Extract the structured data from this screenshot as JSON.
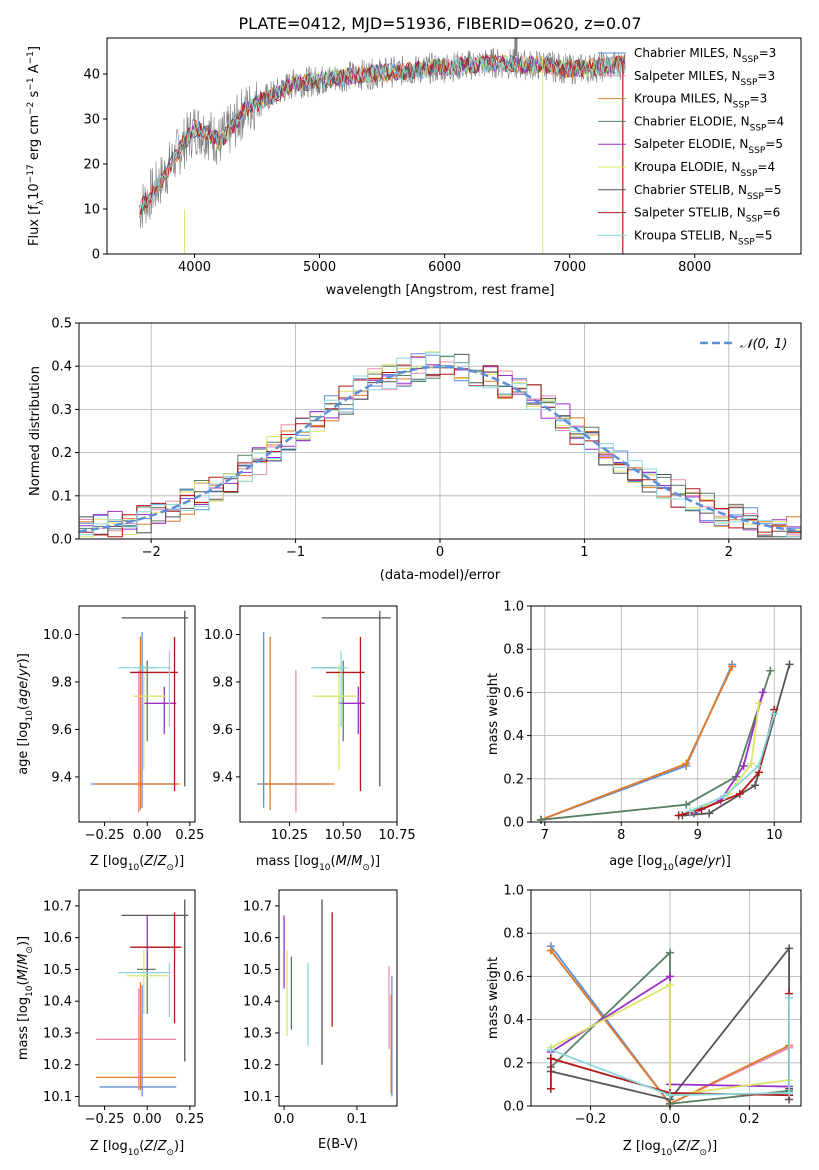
{
  "figure": {
    "title": "PLATE=0412, MJD=51936, FIBERID=0620, z=0.07"
  },
  "colors": {
    "Chabrier MILES": "#5b8fd9",
    "Salpeter MILES": "#ea8fb2",
    "Kroupa MILES": "#e07b28",
    "Chabrier ELODIE": "#5a7f63",
    "Salpeter ELODIE": "#9b30c8",
    "Kroupa ELODIE": "#dde46a",
    "Chabrier STELIB": "#555555",
    "Salpeter STELIB": "#b01818",
    "Kroupa STELIB": "#8ad8dc",
    "data": "#808080",
    "gaussian": "#5b8fd9",
    "grid": "#b0b0b0"
  },
  "chart_data": [
    {
      "panel": "spectrum",
      "type": "line",
      "xlabel": "wavelength [Angstrom, rest frame]",
      "ylabel": "Flux [f",
      "xlim": [
        3300,
        8850
      ],
      "ylim": [
        0,
        48
      ],
      "xticks": [
        4000,
        5000,
        6000,
        7000,
        8000
      ],
      "yticks": [
        0,
        10,
        20,
        30,
        40
      ],
      "grid": false,
      "legend_position": "right",
      "series": [
        {
          "name": "Chabrier MILES, N",
          "sub": "SSP",
          "n": "=3"
        },
        {
          "name": "Salpeter MILES, N",
          "sub": "SSP",
          "n": "=3"
        },
        {
          "name": "Kroupa MILES, N",
          "sub": "SSP",
          "n": "=3"
        },
        {
          "name": "Chabrier ELODIE, N",
          "sub": "SSP",
          "n": "=4"
        },
        {
          "name": "Salpeter ELODIE, N",
          "sub": "SSP",
          "n": "=5"
        },
        {
          "name": "Kroupa ELODIE, N",
          "sub": "SSP",
          "n": "=4"
        },
        {
          "name": "Chabrier STELIB, N",
          "sub": "SSP",
          "n": "=5"
        },
        {
          "name": "Salpeter STELIB, N",
          "sub": "SSP",
          "n": "=6"
        },
        {
          "name": "Kroupa STELIB, N",
          "sub": "SSP",
          "n": "=5"
        }
      ],
      "continuum_x": [
        3560,
        3700,
        3900,
        4000,
        4100,
        4200,
        4300,
        4400,
        4600,
        4800,
        5000,
        5200,
        5400,
        5600,
        5800,
        6000,
        6200,
        6400,
        6600,
        6800,
        7000,
        7200,
        7400,
        7450
      ],
      "continuum_y": [
        10,
        15,
        24,
        28,
        27,
        25,
        28,
        32,
        35,
        38,
        38.5,
        39.5,
        40,
        40.5,
        41,
        41.5,
        42,
        42.5,
        42,
        42,
        41,
        41.5,
        42,
        42.5
      ]
    },
    {
      "panel": "residuals",
      "type": "histogram",
      "xlabel": "(data-model)/error",
      "ylabel": "Normed distribution",
      "xlim": [
        -2.5,
        2.5
      ],
      "ylim": [
        0,
        0.5
      ],
      "xticks": [
        -2,
        -1,
        0,
        1,
        2
      ],
      "yticks": [
        0.0,
        0.1,
        0.2,
        0.3,
        0.4,
        0.5
      ],
      "grid": true,
      "legend_position": "top-right",
      "legend_label": "𝒩(0, 1)",
      "bin_width": 0.1
    },
    {
      "panel": "age-vs-Z",
      "type": "scatter",
      "xlabel": "Z [log",
      "ylabel": "age  [log",
      "xlim": [
        -0.4,
        0.28
      ],
      "ylim": [
        9.21,
        10.12
      ],
      "xticks": [
        -0.25,
        0.0,
        0.25
      ],
      "yticks": [
        9.4,
        9.6,
        9.8,
        10.0
      ],
      "grid": false,
      "points": [
        {
          "label": "Chabrier MILES",
          "x": -0.03,
          "xlo": -0.33,
          "xhi": 0.18,
          "y": 9.37,
          "ylo": 9.27,
          "yhi": 10.01
        },
        {
          "label": "Salpeter MILES",
          "x": -0.05,
          "xlo": -0.3,
          "xhi": 0.17,
          "y": 9.37,
          "ylo": 9.25,
          "yhi": 9.85
        },
        {
          "label": "Kroupa MILES",
          "x": -0.04,
          "xlo": -0.3,
          "xhi": 0.19,
          "y": 9.37,
          "ylo": 9.26,
          "yhi": 9.99
        },
        {
          "label": "Chabrier ELODIE",
          "x": 0.0,
          "xlo": -0.06,
          "xhi": 0.05,
          "y": 9.86,
          "ylo": 9.55,
          "yhi": 9.89
        },
        {
          "label": "Salpeter ELODIE",
          "x": 0.1,
          "xlo": -0.02,
          "xhi": 0.17,
          "y": 9.71,
          "ylo": 9.58,
          "yhi": 9.78
        },
        {
          "label": "Kroupa ELODIE",
          "x": -0.02,
          "xlo": -0.08,
          "xhi": 0.11,
          "y": 9.74,
          "ylo": 9.43,
          "yhi": 9.87
        },
        {
          "label": "Chabrier STELIB",
          "x": 0.22,
          "xlo": -0.15,
          "xhi": 0.24,
          "y": 10.07,
          "ylo": 9.36,
          "yhi": 10.1
        },
        {
          "label": "Salpeter STELIB",
          "x": 0.16,
          "xlo": -0.1,
          "xhi": 0.18,
          "y": 9.84,
          "ylo": 9.34,
          "yhi": 9.99
        },
        {
          "label": "Kroupa STELIB",
          "x": 0.13,
          "xlo": -0.17,
          "xhi": 0.14,
          "y": 9.86,
          "ylo": 9.61,
          "yhi": 9.93
        }
      ]
    },
    {
      "panel": "age-vs-mass",
      "type": "scatter",
      "xlabel": "mass [log",
      "ylabel": "",
      "xlim": [
        10.02,
        10.75
      ],
      "ylim": [
        9.21,
        10.12
      ],
      "xticks": [
        10.25,
        10.5,
        10.75
      ],
      "yticks": [
        9.4,
        9.6,
        9.8,
        10.0
      ],
      "grid": false,
      "points": [
        {
          "label": "Chabrier MILES",
          "x": 10.13,
          "xlo": 10.1,
          "xhi": 10.42,
          "y": 9.37,
          "ylo": 9.27,
          "yhi": 10.01
        },
        {
          "label": "Salpeter MILES",
          "x": 10.28,
          "xlo": 10.12,
          "xhi": 10.44,
          "y": 9.37,
          "ylo": 9.25,
          "yhi": 9.85
        },
        {
          "label": "Kroupa MILES",
          "x": 10.16,
          "xlo": 10.12,
          "xhi": 10.46,
          "y": 9.37,
          "ylo": 9.26,
          "yhi": 9.99
        },
        {
          "label": "Chabrier ELODIE",
          "x": 10.5,
          "xlo": 10.36,
          "xhi": 10.5,
          "y": 9.86,
          "ylo": 9.55,
          "yhi": 9.89
        },
        {
          "label": "Salpeter ELODIE",
          "x": 10.57,
          "xlo": 10.48,
          "xhi": 10.6,
          "y": 9.71,
          "ylo": 9.58,
          "yhi": 9.78
        },
        {
          "label": "Kroupa ELODIE",
          "x": 10.48,
          "xlo": 10.36,
          "xhi": 10.56,
          "y": 9.74,
          "ylo": 9.43,
          "yhi": 9.87
        },
        {
          "label": "Chabrier STELIB",
          "x": 10.67,
          "xlo": 10.4,
          "xhi": 10.72,
          "y": 10.07,
          "ylo": 9.36,
          "yhi": 10.1
        },
        {
          "label": "Salpeter STELIB",
          "x": 10.58,
          "xlo": 10.42,
          "xhi": 10.6,
          "y": 9.84,
          "ylo": 9.34,
          "yhi": 9.99
        },
        {
          "label": "Kroupa STELIB",
          "x": 10.49,
          "xlo": 10.35,
          "xhi": 10.52,
          "y": 9.86,
          "ylo": 9.61,
          "yhi": 9.93
        }
      ]
    },
    {
      "panel": "massweight-vs-age",
      "type": "line",
      "xlabel": "age  [log",
      "ylabel": "mass weight",
      "xlim": [
        6.82,
        10.35
      ],
      "ylim": [
        0,
        1.0
      ],
      "xticks": [
        7,
        8,
        9,
        10
      ],
      "yticks": [
        0.0,
        0.2,
        0.4,
        0.6,
        0.8,
        1.0
      ],
      "grid": true,
      "series": [
        {
          "name": "Chabrier MILES",
          "x": [
            6.95,
            8.85,
            9.45
          ],
          "y": [
            0.01,
            0.26,
            0.73
          ]
        },
        {
          "name": "Salpeter MILES",
          "x": [
            6.95,
            8.85,
            9.45
          ],
          "y": [
            0.01,
            0.27,
            0.72
          ]
        },
        {
          "name": "Kroupa MILES",
          "x": [
            6.95,
            8.85,
            9.45
          ],
          "y": [
            0.01,
            0.27,
            0.72
          ]
        },
        {
          "name": "Chabrier ELODIE",
          "x": [
            6.95,
            8.85,
            9.5,
            9.95
          ],
          "y": [
            0.01,
            0.08,
            0.21,
            0.7
          ]
        },
        {
          "name": "Salpeter ELODIE",
          "x": [
            8.95,
            9.3,
            9.6,
            9.85
          ],
          "y": [
            0.04,
            0.1,
            0.26,
            0.6
          ]
        },
        {
          "name": "Kroupa ELODIE",
          "x": [
            8.95,
            9.4,
            9.7,
            9.8
          ],
          "y": [
            0.05,
            0.13,
            0.27,
            0.55
          ]
        },
        {
          "name": "Chabrier STELIB",
          "x": [
            8.8,
            9.15,
            9.75,
            10.2
          ],
          "y": [
            0.03,
            0.04,
            0.17,
            0.73
          ]
        },
        {
          "name": "Salpeter STELIB",
          "x": [
            8.75,
            9.05,
            9.55,
            9.8,
            10.0
          ],
          "y": [
            0.03,
            0.06,
            0.13,
            0.23,
            0.52
          ]
        },
        {
          "name": "Kroupa STELIB",
          "x": [
            8.9,
            9.35,
            9.8,
            10.0
          ],
          "y": [
            0.05,
            0.12,
            0.26,
            0.5
          ]
        }
      ]
    },
    {
      "panel": "mass-vs-Z",
      "type": "scatter",
      "xlabel": "Z [log",
      "ylabel": "mass [log",
      "xlim": [
        -0.4,
        0.28
      ],
      "ylim": [
        10.07,
        10.75
      ],
      "xticks": [
        -0.25,
        0.0,
        0.25
      ],
      "yticks": [
        10.1,
        10.2,
        10.3,
        10.4,
        10.5,
        10.6,
        10.7
      ],
      "grid": false,
      "points": [
        {
          "label": "Chabrier MILES",
          "x": -0.03,
          "xlo": -0.28,
          "xhi": 0.17,
          "y": 10.13,
          "ylo": 10.1,
          "yhi": 10.45
        },
        {
          "label": "Salpeter MILES",
          "x": -0.05,
          "xlo": -0.3,
          "xhi": 0.17,
          "y": 10.28,
          "ylo": 10.12,
          "yhi": 10.44
        },
        {
          "label": "Kroupa MILES",
          "x": -0.04,
          "xlo": -0.3,
          "xhi": 0.17,
          "y": 10.16,
          "ylo": 10.12,
          "yhi": 10.46
        },
        {
          "label": "Chabrier ELODIE",
          "x": 0.0,
          "xlo": -0.06,
          "xhi": 0.05,
          "y": 10.5,
          "ylo": 10.36,
          "yhi": 10.55
        },
        {
          "label": "Salpeter ELODIE",
          "x": 0.0,
          "xlo": -0.02,
          "xhi": 0.18,
          "y": 10.57,
          "ylo": 10.49,
          "yhi": 10.67
        },
        {
          "label": "Kroupa ELODIE",
          "x": -0.02,
          "xlo": -0.12,
          "xhi": 0.12,
          "y": 10.48,
          "ylo": 10.36,
          "yhi": 10.56
        },
        {
          "label": "Chabrier STELIB",
          "x": 0.22,
          "xlo": -0.15,
          "xhi": 0.24,
          "y": 10.67,
          "ylo": 10.21,
          "yhi": 10.72
        },
        {
          "label": "Salpeter STELIB",
          "x": 0.16,
          "xlo": -0.1,
          "xhi": 0.2,
          "y": 10.57,
          "ylo": 10.33,
          "yhi": 10.68
        },
        {
          "label": "Kroupa STELIB",
          "x": 0.13,
          "xlo": -0.17,
          "xhi": 0.14,
          "y": 10.49,
          "ylo": 10.35,
          "yhi": 10.52
        }
      ]
    },
    {
      "panel": "mass-vs-EBV",
      "type": "scatter",
      "xlabel": "E(B-V)",
      "ylabel": "",
      "xlim": [
        -0.007,
        0.155
      ],
      "ylim": [
        10.07,
        10.75
      ],
      "xticks": [
        0.0,
        0.1
      ],
      "yticks": [
        10.1,
        10.2,
        10.3,
        10.4,
        10.5,
        10.6,
        10.7
      ],
      "grid": false,
      "points": [
        {
          "label": "Chabrier MILES",
          "x": 0.148,
          "ylo": 10.1,
          "yhi": 10.48
        },
        {
          "label": "Salpeter MILES",
          "x": 0.144,
          "ylo": 10.25,
          "yhi": 10.51
        },
        {
          "label": "Kroupa MILES",
          "x": 0.147,
          "ylo": 10.11,
          "yhi": 10.42
        },
        {
          "label": "Chabrier ELODIE",
          "x": 0.01,
          "ylo": 10.31,
          "yhi": 10.54
        },
        {
          "label": "Salpeter ELODIE",
          "x": 0.0,
          "ylo": 10.44,
          "yhi": 10.67
        },
        {
          "label": "Kroupa ELODIE",
          "x": 0.004,
          "ylo": 10.29,
          "yhi": 10.56
        },
        {
          "label": "Chabrier STELIB",
          "x": 0.052,
          "ylo": 10.2,
          "yhi": 10.72
        },
        {
          "label": "Salpeter STELIB",
          "x": 0.066,
          "ylo": 10.32,
          "yhi": 10.68
        },
        {
          "label": "Kroupa STELIB",
          "x": 0.033,
          "ylo": 10.26,
          "yhi": 10.52
        }
      ]
    },
    {
      "panel": "massweight-vs-Z",
      "type": "line",
      "xlabel": "Z [log",
      "ylabel": "mass weight",
      "xlim": [
        -0.35,
        0.33
      ],
      "ylim": [
        0,
        1.0
      ],
      "xticks": [
        -0.2,
        0.0,
        0.2
      ],
      "yticks": [
        0.0,
        0.2,
        0.4,
        0.6,
        0.8,
        1.0
      ],
      "grid": true,
      "series": [
        {
          "name": "Chabrier MILES",
          "x": [
            -0.3,
            0.0,
            0.3
          ],
          "y": [
            0.74,
            0.01,
            0.27
          ]
        },
        {
          "name": "Salpeter MILES",
          "x": [
            -0.3,
            0.0,
            0.3
          ],
          "y": [
            0.72,
            0.01,
            0.27
          ]
        },
        {
          "name": "Kroupa MILES",
          "x": [
            -0.3,
            0.0,
            0.3
          ],
          "y": [
            0.72,
            0.01,
            0.28
          ]
        },
        {
          "name": "Chabrier ELODIE",
          "x": [
            -0.3,
            0.0,
            0.0,
            0.3
          ],
          "y": [
            0.18,
            0.71,
            0.01,
            0.07
          ]
        },
        {
          "name": "Salpeter ELODIE",
          "x": [
            -0.3,
            0.0,
            0.0,
            0.3
          ],
          "y": [
            0.25,
            0.6,
            0.1,
            0.09
          ]
        },
        {
          "name": "Kroupa ELODIE",
          "x": [
            -0.3,
            0.0,
            0.0,
            0.3
          ],
          "y": [
            0.27,
            0.56,
            0.05,
            0.12
          ]
        },
        {
          "name": "Chabrier STELIB",
          "x": [
            -0.3,
            0.0,
            0.3,
            0.3,
            0.3
          ],
          "y": [
            0.16,
            0.03,
            0.73,
            0.03,
            0.08
          ]
        },
        {
          "name": "Salpeter STELIB",
          "x": [
            -0.3,
            -0.3,
            0.0,
            0.3,
            0.3
          ],
          "y": [
            0.08,
            0.22,
            0.06,
            0.05,
            0.52
          ]
        },
        {
          "name": "Kroupa STELIB",
          "x": [
            -0.3,
            0.0,
            0.3,
            0.3
          ],
          "y": [
            0.26,
            0.05,
            0.06,
            0.5
          ]
        }
      ]
    }
  ]
}
